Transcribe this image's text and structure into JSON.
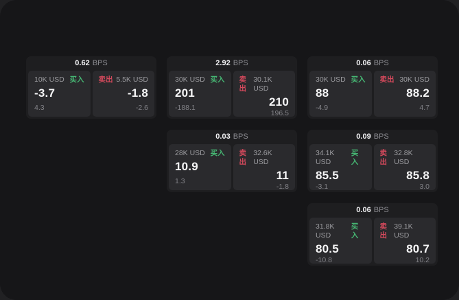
{
  "labels": {
    "bps_unit": "BPS",
    "buy": "买入",
    "sell": "卖出"
  },
  "colors": {
    "panel_bg": "#161618",
    "outer_bg": "#212123",
    "card_bg": "#1e1e20",
    "pane_bg": "#2a2a2d",
    "buy_green": "#46b673",
    "sell_red": "#d4495c",
    "text_primary": "#f5f5f6",
    "text_secondary": "#9b9b9f"
  },
  "cards": [
    {
      "bps": "0.62",
      "buy": {
        "amount": "10K USD",
        "price": "-3.7",
        "sub": "4.3"
      },
      "sell": {
        "amount": "5.5K USD",
        "price": "-1.8",
        "sub": "-2.6"
      }
    },
    {
      "bps": "2.92",
      "buy": {
        "amount": "30K USD",
        "price": "201",
        "sub": "-188.1"
      },
      "sell": {
        "amount": "30.1K USD",
        "price": "210",
        "sub": "196.5"
      }
    },
    {
      "bps": "0.06",
      "buy": {
        "amount": "30K USD",
        "price": "88",
        "sub": "-4.9"
      },
      "sell": {
        "amount": "30K USD",
        "price": "88.2",
        "sub": "4.7"
      }
    },
    {
      "bps": "0.03",
      "buy": {
        "amount": "28K USD",
        "price": "10.9",
        "sub": "1.3"
      },
      "sell": {
        "amount": "32.6K USD",
        "price": "11",
        "sub": "-1.8"
      }
    },
    {
      "bps": "0.09",
      "buy": {
        "amount": "34.1K USD",
        "price": "85.5",
        "sub": "-3.1"
      },
      "sell": {
        "amount": "32.8K USD",
        "price": "85.8",
        "sub": "3.0"
      }
    },
    {
      "bps": "0.06",
      "buy": {
        "amount": "31.8K USD",
        "price": "80.5",
        "sub": "-10.8"
      },
      "sell": {
        "amount": "39.1K USD",
        "price": "80.7",
        "sub": "10.2"
      }
    }
  ]
}
